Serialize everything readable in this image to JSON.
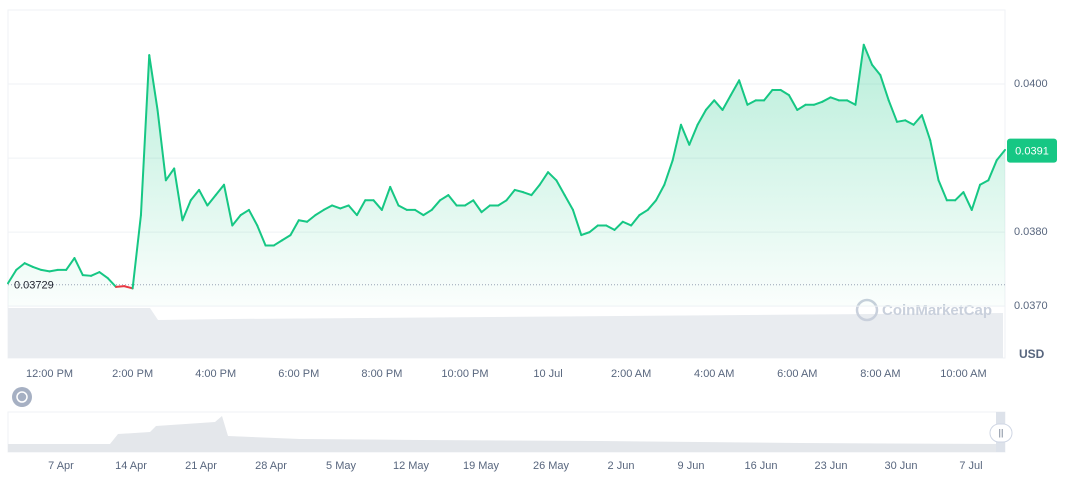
{
  "chart_data": {
    "type": "line",
    "color": "#16c784",
    "below_color": "#ea3943",
    "values": [
      0.03731,
      0.03749,
      0.03758,
      0.03753,
      0.03749,
      0.03747,
      0.03749,
      0.03749,
      0.03765,
      0.03742,
      0.03741,
      0.03746,
      0.03738,
      0.03726,
      0.03727,
      0.03724,
      0.03823,
      0.04039,
      0.03965,
      0.0387,
      0.03886,
      0.03816,
      0.03843,
      0.03857,
      0.03836,
      0.0385,
      0.03864,
      0.03809,
      0.03823,
      0.0383,
      0.03809,
      0.03782,
      0.03782,
      0.03789,
      0.03796,
      0.03816,
      0.03814,
      0.03823,
      0.0383,
      0.03836,
      0.03832,
      0.03836,
      0.03823,
      0.03843,
      0.03843,
      0.0383,
      0.03861,
      0.03836,
      0.0383,
      0.0383,
      0.03823,
      0.0383,
      0.03843,
      0.0385,
      0.03836,
      0.03836,
      0.03843,
      0.03827,
      0.03836,
      0.03836,
      0.03843,
      0.03857,
      0.03854,
      0.0385,
      0.03864,
      0.03881,
      0.0387,
      0.0385,
      0.0383,
      0.03796,
      0.038,
      0.03809,
      0.03809,
      0.03803,
      0.03814,
      0.03809,
      0.03823,
      0.0383,
      0.03843,
      0.03864,
      0.03897,
      0.03945,
      0.03918,
      0.03945,
      0.03965,
      0.03978,
      0.03965,
      0.03985,
      0.04005,
      0.03972,
      0.03978,
      0.03978,
      0.03992,
      0.03992,
      0.03985,
      0.03965,
      0.03972,
      0.03972,
      0.03976,
      0.03982,
      0.03978,
      0.03978,
      0.03972,
      0.04053,
      0.04026,
      0.04012,
      0.03978,
      0.03949,
      0.03951,
      0.03945,
      0.03958,
      0.03924,
      0.0387,
      0.03843,
      0.03843,
      0.03854,
      0.0383,
      0.03864,
      0.0387,
      0.03897,
      0.03911
    ],
    "baseline": 0.03729,
    "current_price": 0.0391,
    "xlim": [
      0,
      120
    ],
    "xticks": [
      {
        "value": 5,
        "label": "12:00 PM"
      },
      {
        "value": 15,
        "label": "2:00 PM"
      },
      {
        "value": 25,
        "label": "4:00 PM"
      },
      {
        "value": 35,
        "label": "6:00 PM"
      },
      {
        "value": 45,
        "label": "8:00 PM"
      },
      {
        "value": 55,
        "label": "10:00 PM"
      },
      {
        "value": 65,
        "label": "10 Jul"
      },
      {
        "value": 75,
        "label": "2:00 AM"
      },
      {
        "value": 85,
        "label": "4:00 AM"
      },
      {
        "value": 95,
        "label": "6:00 AM"
      },
      {
        "value": 105,
        "label": "8:00 AM"
      },
      {
        "value": 115,
        "label": "10:00 AM"
      }
    ],
    "ylim": [
      0.0363,
      0.041
    ],
    "yticks": [
      {
        "value": 0.037,
        "label": "0.0370"
      },
      {
        "value": 0.038,
        "label": "0.0380"
      },
      {
        "value": 0.039,
        "label": "0.0390"
      },
      {
        "value": 0.04,
        "label": "0.0400"
      }
    ],
    "grid": true,
    "currency": "USD",
    "watermark": "CoinMarketCap",
    "navigator": {
      "dates": [
        "7 Apr",
        "14 Apr",
        "21 Apr",
        "28 Apr",
        "5 May",
        "12 May",
        "19 May",
        "26 May",
        "2 Jun",
        "9 Jun",
        "16 Jun",
        "23 Jun",
        "30 Jun",
        "7 Jul"
      ]
    }
  }
}
